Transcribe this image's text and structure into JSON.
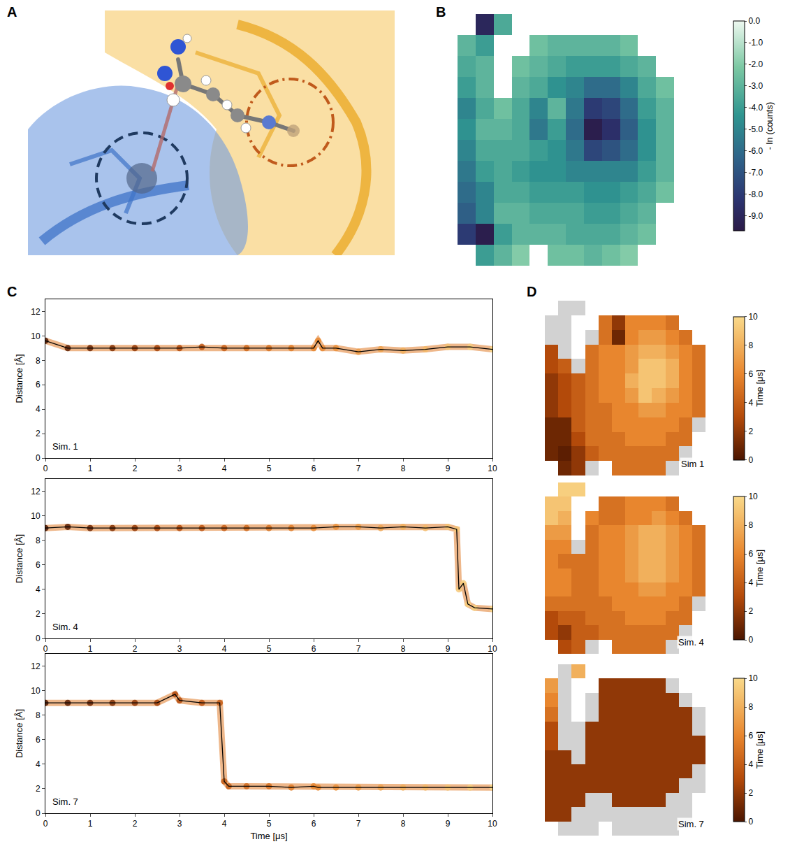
{
  "panel_labels": [
    "A",
    "B",
    "C",
    "D"
  ],
  "chart_data": [
    {
      "type": "heatmap",
      "tick_labels": false,
      "cells": [
        [
          null,
          -9,
          -3.5,
          null,
          null,
          null,
          null,
          null,
          null,
          null,
          null,
          null
        ],
        [
          -3,
          -4,
          null,
          null,
          -2.5,
          -3,
          -3,
          -3,
          -3,
          -2.5,
          null,
          null
        ],
        [
          -3.5,
          -3,
          null,
          -2.5,
          -3,
          -3.5,
          -4,
          -4,
          -4,
          -3.5,
          -3,
          null
        ],
        [
          -4,
          -3,
          null,
          -3,
          -3.5,
          -4.5,
          -5,
          -6,
          -6,
          -5,
          -3.5,
          -2.5
        ],
        [
          -5,
          -3.5,
          -2.5,
          -3.5,
          -5,
          -3,
          -5.5,
          -8,
          -7.5,
          -6,
          -4,
          -3
        ],
        [
          -4.5,
          -3,
          -3,
          -3.5,
          -5.5,
          -4,
          -6,
          -9.5,
          -8.5,
          -6.5,
          -4.5,
          -3
        ],
        [
          -5,
          -3.5,
          -3.5,
          -3.5,
          -4,
          -4.5,
          -5.5,
          -7.5,
          -7,
          -6,
          -4.5,
          -3
        ],
        [
          -5.5,
          -4,
          -3.5,
          -4,
          -4.5,
          -4.5,
          -5,
          -5,
          -5,
          -5,
          -4,
          -3
        ],
        [
          -6,
          -5,
          -3.5,
          -3.5,
          -4,
          -4,
          -4,
          -4.5,
          -4.5,
          -4,
          -3.5,
          -2.5
        ],
        [
          -6.5,
          -5,
          -3,
          -3,
          -3.5,
          -3.5,
          -3.5,
          -4,
          -4,
          -3.5,
          -3,
          null
        ],
        [
          -8,
          -9.5,
          -4,
          -3,
          -3,
          -3,
          -3.5,
          -3.5,
          -3.5,
          -3,
          -2.5,
          null
        ],
        [
          null,
          -4,
          -3,
          -2,
          null,
          -2.5,
          -2.5,
          -3,
          -2.5,
          -2,
          null,
          null
        ]
      ],
      "colorbar": {
        "title": "- ln (counts)",
        "range": [
          -9.7,
          0
        ],
        "ticks": [
          {
            "value": 0,
            "label": "0.0"
          },
          {
            "value": -1,
            "label": "-1.0"
          },
          {
            "value": -2,
            "label": "-2.0"
          },
          {
            "value": -3,
            "label": "-3.0"
          },
          {
            "value": -4,
            "label": "-4.0"
          },
          {
            "value": -5,
            "label": "-5.0"
          },
          {
            "value": -6,
            "label": "-6.0"
          },
          {
            "value": -7,
            "label": "-7.0"
          },
          {
            "value": -8,
            "label": "-8.0"
          },
          {
            "value": -9,
            "label": "-9.0"
          }
        ]
      }
    },
    {
      "type": "line",
      "label": "Sim. 1",
      "color": "#000000",
      "y_label": "Distance [Å]",
      "x": [
        0,
        0.5,
        1,
        1.5,
        2,
        2.5,
        3,
        3.5,
        4,
        4.5,
        5,
        5.5,
        6,
        6.1,
        6.2,
        6.5,
        7,
        7.5,
        8,
        8.5,
        9,
        9.5,
        10
      ],
      "values": [
        9.6,
        9.0,
        9.0,
        9.0,
        9.0,
        9.0,
        9.0,
        9.1,
        9.0,
        9.0,
        9.0,
        9.0,
        9.0,
        9.6,
        9.0,
        9.0,
        8.7,
        8.9,
        8.8,
        8.9,
        9.1,
        9.1,
        8.9
      ],
      "xlim": [
        0,
        10
      ],
      "ylim": [
        0,
        13
      ],
      "xticks": [
        0,
        1,
        2,
        3,
        4,
        5,
        6,
        7,
        8,
        9,
        10
      ],
      "yticks": [
        0,
        2,
        4,
        6,
        8,
        10,
        12
      ]
    },
    {
      "type": "line",
      "label": "Sim. 4",
      "color": "#000000",
      "y_label": "Distance [Å]",
      "x": [
        0,
        0.5,
        1,
        1.5,
        2,
        2.5,
        3,
        3.5,
        4,
        4.5,
        5,
        5.5,
        6,
        6.5,
        7,
        7.5,
        8,
        8.5,
        9,
        9.2,
        9.25,
        9.35,
        9.45,
        9.6,
        10
      ],
      "values": [
        9.0,
        9.1,
        9.0,
        9.0,
        9.0,
        9.0,
        9.0,
        9.0,
        9.0,
        9.0,
        9.0,
        9.0,
        9.0,
        9.1,
        9.1,
        9.0,
        9.1,
        9.0,
        9.1,
        8.9,
        4.0,
        4.5,
        2.8,
        2.5,
        2.4
      ],
      "xlim": [
        0,
        10
      ],
      "ylim": [
        0,
        13
      ],
      "xticks": [
        0,
        1,
        2,
        3,
        4,
        5,
        6,
        7,
        8,
        9,
        10
      ],
      "yticks": [
        0,
        2,
        4,
        6,
        8,
        10,
        12
      ]
    },
    {
      "type": "line",
      "label": "Sim. 7",
      "color": "#000000",
      "y_label": "Distance [Å]",
      "x_label": "Time [μs]",
      "x": [
        0,
        0.5,
        1,
        1.5,
        2,
        2.5,
        2.9,
        3,
        3.5,
        3.9,
        4,
        4.1,
        4.5,
        5,
        5.5,
        6,
        6.1,
        6.5,
        7,
        7.5,
        8,
        8.5,
        9,
        9.5,
        10
      ],
      "values": [
        9.0,
        9.0,
        9.0,
        9.0,
        9.0,
        9.0,
        9.7,
        9.2,
        9.0,
        9.0,
        2.6,
        2.2,
        2.2,
        2.2,
        2.1,
        2.2,
        2.1,
        2.1,
        2.1,
        2.1,
        2.1,
        2.1,
        2.1,
        2.1,
        2.1
      ],
      "xlim": [
        0,
        10
      ],
      "ylim": [
        0,
        13
      ],
      "xticks": [
        0,
        1,
        2,
        3,
        4,
        5,
        6,
        7,
        8,
        9,
        10
      ],
      "yticks": [
        0,
        2,
        4,
        6,
        8,
        10,
        12
      ]
    },
    {
      "type": "heatmap",
      "label": "Sim 1",
      "tick_labels": false,
      "cells": [
        [
          null,
          null,
          null,
          null,
          null,
          null,
          null,
          null,
          null,
          null,
          null,
          null
        ],
        [
          null,
          null,
          null,
          null,
          5,
          2,
          6,
          6,
          6,
          5,
          null,
          null
        ],
        [
          null,
          null,
          null,
          null,
          5,
          1,
          6,
          7,
          7,
          6,
          5,
          null
        ],
        [
          3,
          null,
          null,
          5,
          6,
          6,
          7,
          8,
          8,
          7,
          6,
          5
        ],
        [
          3,
          4,
          null,
          5,
          6,
          6,
          7,
          9,
          9,
          8,
          6,
          5
        ],
        [
          2,
          3,
          4,
          5,
          6,
          6,
          8,
          9,
          9,
          8,
          6,
          5
        ],
        [
          2,
          3,
          4,
          5,
          6,
          6,
          7,
          9,
          8,
          7,
          6,
          5
        ],
        [
          2,
          3,
          4,
          5,
          5,
          6,
          6,
          7,
          7,
          6,
          6,
          5
        ],
        [
          1,
          1,
          4,
          5,
          5,
          6,
          6,
          6,
          6,
          6,
          5,
          null
        ],
        [
          1,
          1,
          3,
          5,
          5,
          5,
          6,
          6,
          6,
          5,
          5,
          null
        ],
        [
          1,
          0.5,
          2,
          4,
          5,
          5,
          5,
          5,
          5,
          5,
          null,
          null
        ],
        [
          null,
          1,
          2,
          null,
          null,
          5,
          5,
          5,
          5,
          null,
          null,
          null
        ]
      ],
      "colorbar": {
        "title": "Time [μs]",
        "range": [
          0,
          10
        ],
        "ticks": [
          0,
          2,
          4,
          6,
          8,
          10
        ]
      }
    },
    {
      "type": "heatmap",
      "label": "Sim. 4",
      "tick_labels": false,
      "cells": [
        [
          null,
          9.5,
          9.5,
          null,
          null,
          null,
          null,
          null,
          null,
          null,
          null,
          null
        ],
        [
          9,
          9,
          null,
          null,
          5,
          5,
          6,
          6,
          6,
          5,
          null,
          null
        ],
        [
          9,
          8,
          null,
          6,
          5,
          5,
          6,
          6,
          7,
          6,
          5,
          null
        ],
        [
          7,
          7,
          null,
          5,
          6,
          6,
          7,
          8,
          8,
          7,
          6,
          5
        ],
        [
          6,
          6,
          null,
          5,
          6,
          6,
          7,
          8,
          8,
          7,
          6,
          5
        ],
        [
          6,
          5,
          5,
          5,
          6,
          6,
          7,
          8,
          8,
          7,
          6,
          5
        ],
        [
          6,
          6,
          5,
          5,
          6,
          6,
          7,
          8,
          8,
          7,
          6,
          5
        ],
        [
          6,
          6,
          5,
          5,
          6,
          6,
          6,
          7,
          7,
          6,
          6,
          5
        ],
        [
          5,
          5,
          5,
          5,
          5,
          6,
          6,
          6,
          6,
          6,
          5,
          null
        ],
        [
          3,
          4,
          4,
          5,
          5,
          5,
          6,
          6,
          6,
          5,
          5,
          null
        ],
        [
          3,
          2,
          4,
          4,
          5,
          5,
          5,
          5,
          5,
          5,
          null,
          null
        ],
        [
          null,
          3,
          4,
          null,
          null,
          5,
          5,
          5,
          5,
          null,
          null,
          null
        ]
      ],
      "colorbar": {
        "title": "Time [μs]",
        "range": [
          0,
          10
        ],
        "ticks": [
          0,
          2,
          4,
          6,
          8,
          10
        ]
      }
    },
    {
      "type": "heatmap",
      "label": "Sim. 7",
      "tick_labels": false,
      "cells": [
        [
          null,
          null,
          8,
          null,
          null,
          null,
          null,
          null,
          null,
          null,
          null,
          null
        ],
        [
          7,
          null,
          null,
          null,
          2,
          2,
          2,
          2,
          2,
          null,
          null,
          null
        ],
        [
          6,
          null,
          null,
          null,
          2,
          2,
          2,
          2,
          2,
          2,
          null,
          null
        ],
        [
          5,
          null,
          null,
          null,
          2,
          2,
          2,
          2,
          2,
          2,
          2,
          null
        ],
        [
          3,
          null,
          null,
          2,
          2,
          2,
          2,
          2,
          2,
          2,
          2,
          null
        ],
        [
          3,
          null,
          null,
          2,
          2,
          2,
          2,
          2,
          2,
          2,
          2,
          2
        ],
        [
          2,
          2,
          null,
          2,
          2,
          2,
          2,
          2,
          2,
          2,
          2,
          2
        ],
        [
          2,
          2,
          2,
          2,
          2,
          2,
          2,
          2,
          2,
          2,
          2,
          null
        ],
        [
          2,
          2,
          2,
          2,
          2,
          2,
          2,
          2,
          2,
          2,
          null,
          null
        ],
        [
          2,
          2,
          2,
          null,
          null,
          2,
          2,
          2,
          2,
          null,
          null,
          null
        ],
        [
          2,
          2,
          null,
          null,
          null,
          null,
          null,
          null,
          null,
          null,
          null,
          null
        ],
        [
          null,
          null,
          null,
          null,
          null,
          null,
          null,
          null,
          null,
          null,
          null,
          null
        ]
      ],
      "colorbar": {
        "title": "Time [μs]",
        "range": [
          0,
          10
        ],
        "ticks": [
          0,
          2,
          4,
          6,
          8,
          10
        ]
      }
    }
  ]
}
